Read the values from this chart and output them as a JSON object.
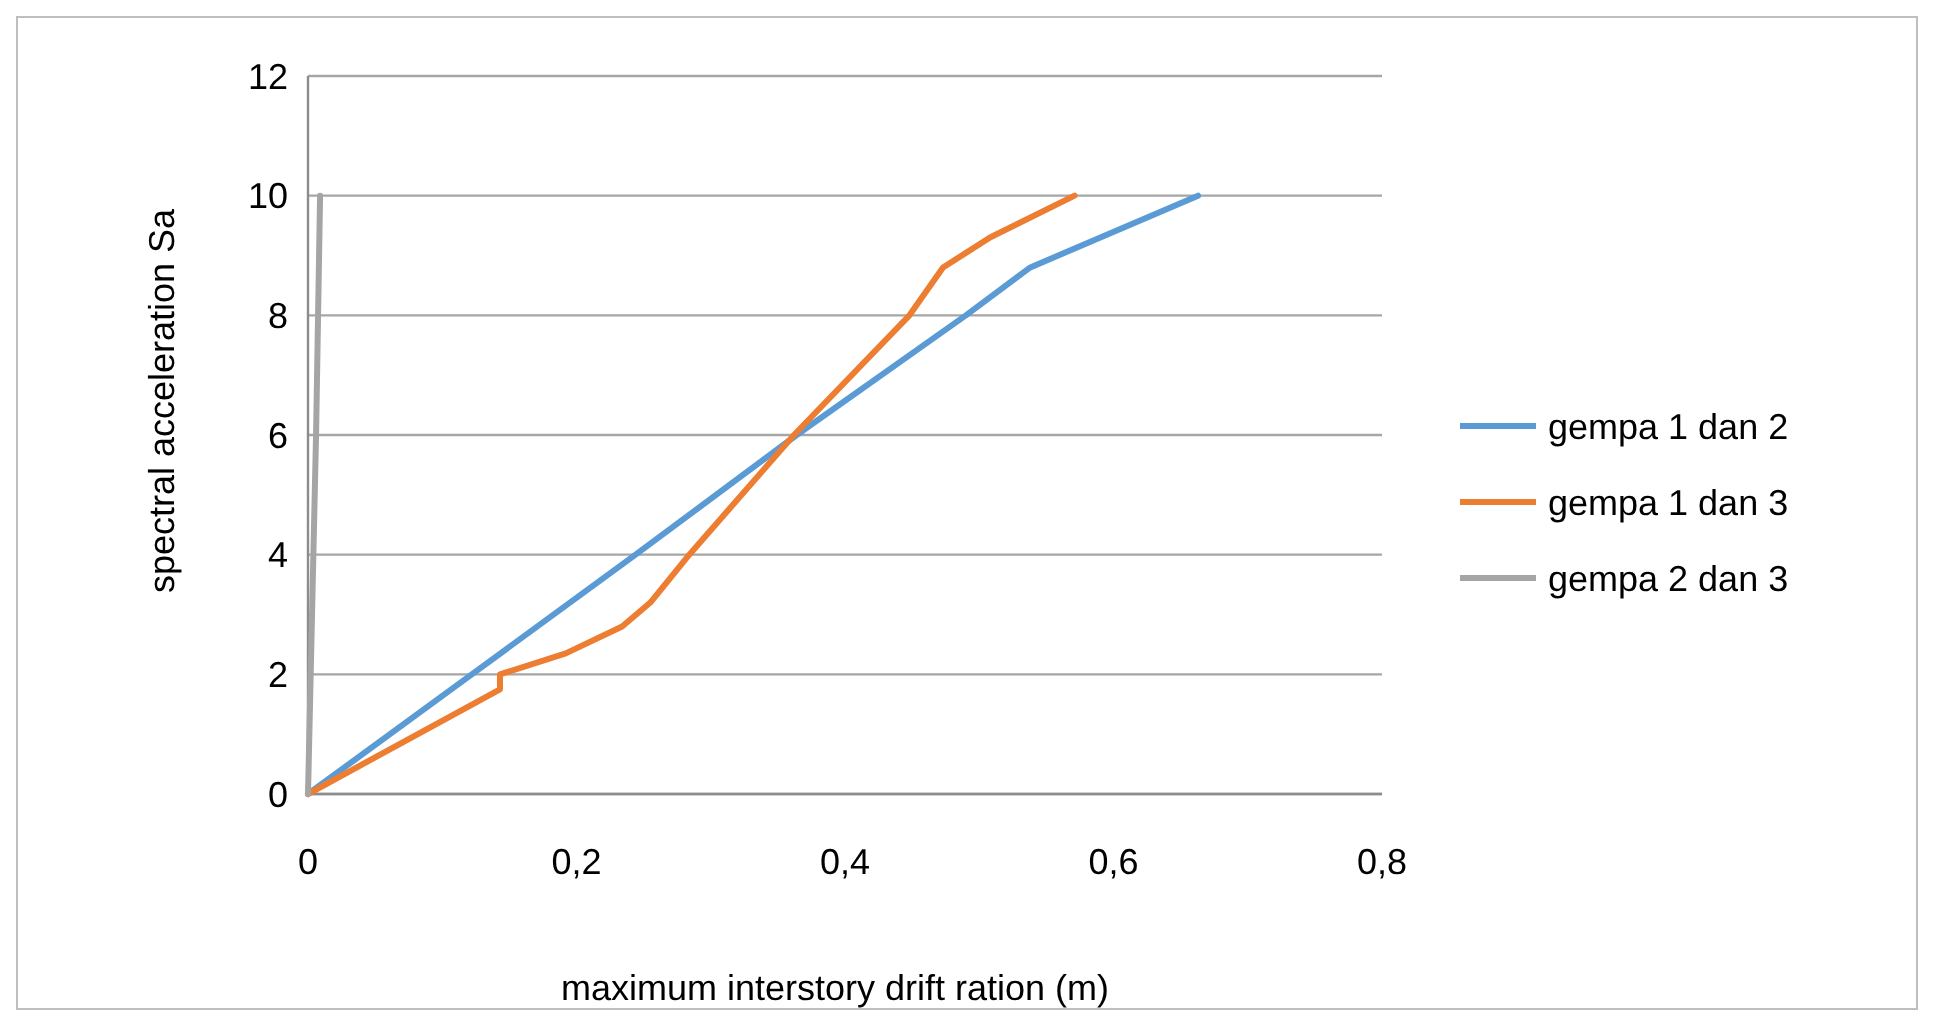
{
  "chart_data": {
    "type": "line",
    "xlabel": "maximum interstory drift ration (m)",
    "ylabel": "spectral acceleration Sa",
    "xlim": [
      0,
      0.8
    ],
    "xticks": [
      {
        "value": 0,
        "label": "0"
      },
      {
        "value": 0.2,
        "label": "0,2"
      },
      {
        "value": 0.4,
        "label": "0,4"
      },
      {
        "value": 0.6,
        "label": "0,6"
      },
      {
        "value": 0.8,
        "label": "0,8"
      }
    ],
    "ylim": [
      0,
      12
    ],
    "yticks": [
      0,
      2,
      4,
      6,
      8,
      10,
      12
    ],
    "grid": "y",
    "legend": "right",
    "marker": "none",
    "line_style": "solid",
    "series": [
      {
        "name": "gempa 1 dan 2",
        "color": "#5b9bd5",
        "x": [
          0,
          0.122,
          0.244,
          0.364,
          0.49,
          0.538,
          0.663
        ],
        "values": [
          0,
          2,
          4,
          6,
          8,
          8.8,
          10
        ]
      },
      {
        "name": "gempa 1 dan 3",
        "color": "#ed7d31",
        "x": [
          0,
          0.143,
          0.143,
          0.192,
          0.234,
          0.255,
          0.284,
          0.362,
          0.448,
          0.473,
          0.508,
          0.571
        ],
        "values": [
          0,
          1.75,
          2.0,
          2.35,
          2.8,
          3.2,
          4,
          6,
          8,
          8.8,
          9.3,
          10
        ]
      },
      {
        "name": "gempa 2 dan 3",
        "color": "#a5a5a5",
        "x": [
          0,
          0.003,
          0.006,
          0.009
        ],
        "values": [
          0,
          3,
          6,
          10
        ]
      }
    ]
  }
}
